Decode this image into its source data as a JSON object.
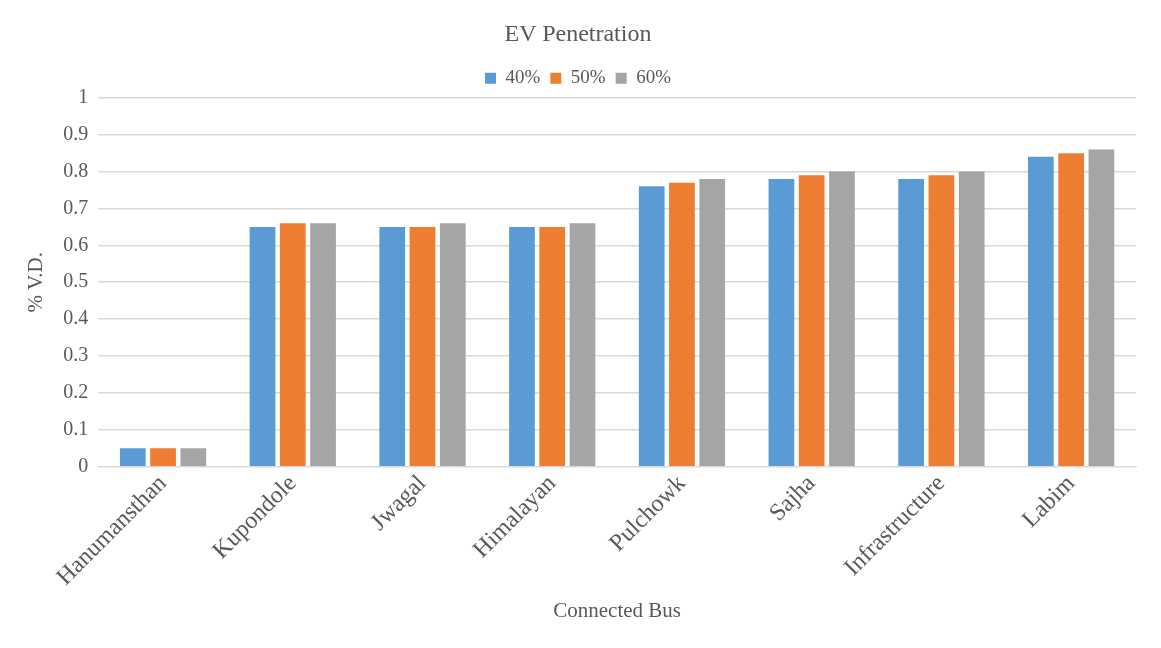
{
  "chart_data": {
    "type": "bar",
    "title": "EV Penetration",
    "xlabel": "Connected Bus",
    "ylabel": "% V.D.",
    "categories": [
      "Hanumansthan",
      "Kupondole",
      "Jwagal",
      "Himalayan",
      "Pulchowk",
      "Sajha",
      "Infrastructure",
      "Labim"
    ],
    "series": [
      {
        "name": "40%",
        "color": "#5b9bd5",
        "values": [
          0.05,
          0.65,
          0.65,
          0.65,
          0.76,
          0.78,
          0.78,
          0.84
        ]
      },
      {
        "name": "50%",
        "color": "#ed7d31",
        "values": [
          0.05,
          0.66,
          0.65,
          0.65,
          0.77,
          0.79,
          0.79,
          0.85
        ]
      },
      {
        "name": "60%",
        "color": "#a5a5a5",
        "values": [
          0.05,
          0.66,
          0.66,
          0.66,
          0.78,
          0.8,
          0.8,
          0.86
        ]
      }
    ],
    "ylim": [
      0,
      1
    ],
    "yticks": [
      0,
      0.1,
      0.2,
      0.3,
      0.4,
      0.5,
      0.6,
      0.7,
      0.8,
      0.9,
      1
    ],
    "grid": "y",
    "legend": "top"
  }
}
